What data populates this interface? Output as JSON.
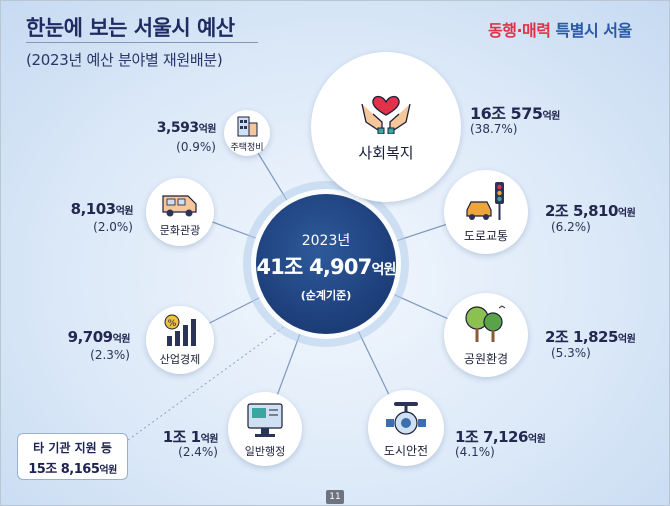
{
  "header": {
    "title": "한눈에 보는 서울시 예산",
    "subtitle": "(2023년 예산 분야별 재원배분)",
    "brand_part1": "동행·매력",
    "brand_part2": "특별시 서울"
  },
  "center": {
    "year": "2023년",
    "amount_main": "41조 4,907",
    "amount_unit": "억원",
    "note": "(순계기준)"
  },
  "sectors": [
    {
      "label": "사회복지",
      "value_num": "16조 575",
      "unit": "억원",
      "share": "(38.7%)",
      "icon": "heart-hands-icon"
    },
    {
      "label": "도로교통",
      "value_num": "2조 5,810",
      "unit": "억원",
      "share": "(6.2%)",
      "icon": "car-traffic-light-icon"
    },
    {
      "label": "공원환경",
      "value_num": "2조 1,825",
      "unit": "억원",
      "share": "(5.3%)",
      "icon": "trees-icon"
    },
    {
      "label": "도시안전",
      "value_num": "1조 7,126",
      "unit": "억원",
      "share": "(4.1%)",
      "icon": "valve-pipe-icon"
    },
    {
      "label": "일반행정",
      "value_num": "1조 1",
      "unit": "억원",
      "share": "(2.4%)",
      "icon": "monitor-icon"
    },
    {
      "label": "산업경제",
      "value_num": "9,709",
      "unit": "억원",
      "share": "(2.3%)",
      "icon": "bar-chart-percent-icon"
    },
    {
      "label": "문화관광",
      "value_num": "8,103",
      "unit": "억원",
      "share": "(2.0%)",
      "icon": "camper-van-icon"
    },
    {
      "label": "주택정비",
      "value_num": "3,593",
      "unit": "억원",
      "share": "(0.9%)",
      "icon": "apartment-building-icon"
    }
  ],
  "support": {
    "line1": "타 기관 지원 등",
    "amount_main": "15조 8,165",
    "amount_unit": "억원"
  },
  "page_number": "11",
  "colors": {
    "navy": "#1c3d78",
    "accent_red": "#e0334a",
    "accent_orange": "#f0a53a",
    "accent_teal": "#3aa6a0"
  }
}
